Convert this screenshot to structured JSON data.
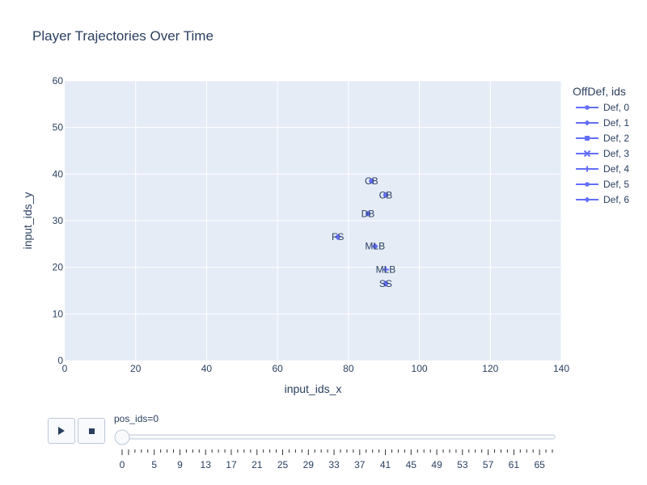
{
  "chart_data": {
    "type": "scatter",
    "title": "Player Trajectories Over Time",
    "xlabel": "input_ids_x",
    "ylabel": "input_ids_y",
    "xlim": [
      0,
      140
    ],
    "ylim": [
      0,
      60
    ],
    "xticks": [
      0,
      20,
      40,
      60,
      80,
      100,
      120,
      140
    ],
    "yticks": [
      0,
      10,
      20,
      30,
      40,
      50,
      60
    ],
    "grid": true,
    "legend_title": "OffDef, ids",
    "legend_position": "right",
    "series": [
      {
        "name": "Def, 0",
        "symbol": "circle"
      },
      {
        "name": "Def, 1",
        "symbol": "diamond"
      },
      {
        "name": "Def, 2",
        "symbol": "square"
      },
      {
        "name": "Def, 3",
        "symbol": "x"
      },
      {
        "name": "Def, 4",
        "symbol": "cross"
      },
      {
        "name": "Def, 5",
        "symbol": "circle"
      },
      {
        "name": "Def, 6",
        "symbol": "diamond"
      }
    ],
    "points": [
      {
        "x": 86.5,
        "y": 38.5,
        "label": "CB",
        "symbol": "circle"
      },
      {
        "x": 90.5,
        "y": 35.5,
        "label": "CB",
        "symbol": "circle"
      },
      {
        "x": 85.5,
        "y": 31.5,
        "label": "DB",
        "symbol": "circle"
      },
      {
        "x": 77.0,
        "y": 26.5,
        "label": "FS",
        "symbol": "diamond"
      },
      {
        "x": 87.5,
        "y": 24.5,
        "label": "MLB",
        "symbol": "diamond"
      },
      {
        "x": 90.5,
        "y": 19.5,
        "label": "MLB",
        "symbol": "cross"
      },
      {
        "x": 90.5,
        "y": 16.5,
        "label": "SS",
        "symbol": "diamond"
      }
    ],
    "marker_color": "#636efa"
  },
  "slider": {
    "label": "pos_ids=0",
    "tick_labels": [
      "0",
      "5",
      "9",
      "13",
      "17",
      "21",
      "25",
      "29",
      "33",
      "37",
      "41",
      "45",
      "49",
      "53",
      "57",
      "61",
      "65"
    ],
    "current": 0
  },
  "controls": {
    "play": "play-icon",
    "stop": "stop-icon"
  },
  "colors": {
    "plot_bg": "#e5ecf6",
    "grid": "#ffffff",
    "text": "#2a3f5f",
    "marker": "#636efa"
  }
}
